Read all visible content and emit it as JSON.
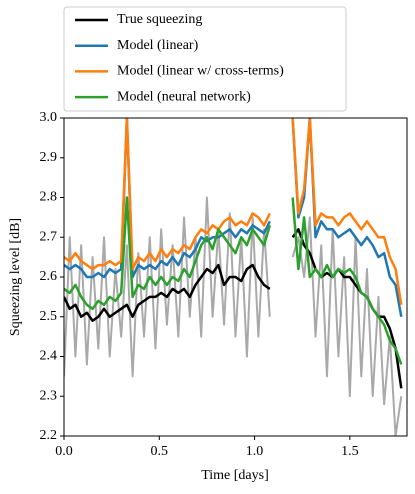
{
  "chart_data": {
    "type": "line",
    "xlabel": "Time [days]",
    "ylabel": "Squeezing level [dB]",
    "x": [
      0.0,
      0.03,
      0.06,
      0.09,
      0.12,
      0.15,
      0.18,
      0.21,
      0.24,
      0.27,
      0.3,
      0.33,
      0.36,
      0.39,
      0.42,
      0.45,
      0.48,
      0.51,
      0.54,
      0.57,
      0.6,
      0.63,
      0.66,
      0.69,
      0.72,
      0.75,
      0.78,
      0.81,
      0.84,
      0.87,
      0.9,
      0.93,
      0.96,
      0.99,
      1.02,
      1.05,
      1.08,
      1.11,
      1.14,
      1.17,
      1.2,
      1.23,
      1.26,
      1.29,
      1.32,
      1.35,
      1.38,
      1.41,
      1.44,
      1.47,
      1.5,
      1.53,
      1.56,
      1.59,
      1.62,
      1.65,
      1.68,
      1.71,
      1.74,
      1.77
    ],
    "series": [
      {
        "color": "#a9a9a9",
        "values": [
          2.35,
          2.7,
          2.4,
          2.68,
          2.38,
          2.65,
          2.42,
          2.7,
          2.4,
          2.62,
          2.45,
          2.68,
          2.35,
          2.66,
          2.45,
          2.7,
          2.42,
          2.72,
          2.48,
          2.68,
          2.45,
          2.75,
          2.5,
          2.7,
          2.45,
          2.8,
          2.5,
          2.72,
          2.48,
          2.76,
          2.45,
          2.7,
          2.4,
          2.75,
          2.45,
          2.72,
          2.5,
          null,
          null,
          null,
          2.65,
          2.7,
          2.6,
          2.75,
          2.45,
          2.68,
          2.35,
          2.72,
          2.4,
          2.65,
          2.3,
          2.7,
          2.35,
          2.62,
          2.3,
          2.55,
          2.28,
          2.45,
          2.2,
          2.3
        ]
      },
      {
        "name": "True squeezing",
        "color": "#000000",
        "values": [
          2.55,
          2.52,
          2.53,
          2.5,
          2.51,
          2.49,
          2.5,
          2.52,
          2.5,
          2.51,
          2.52,
          2.53,
          2.5,
          2.53,
          2.54,
          2.55,
          2.55,
          2.56,
          2.55,
          2.57,
          2.56,
          2.57,
          2.55,
          2.58,
          2.6,
          2.62,
          2.61,
          2.63,
          2.58,
          2.6,
          2.6,
          2.59,
          2.62,
          2.63,
          2.6,
          2.58,
          2.57,
          null,
          null,
          null,
          2.7,
          2.72,
          2.68,
          2.66,
          2.62,
          2.6,
          2.61,
          2.6,
          2.62,
          2.6,
          2.6,
          2.58,
          2.56,
          2.55,
          2.52,
          2.5,
          2.5,
          2.47,
          2.42,
          2.32
        ]
      },
      {
        "name": "Model (linear)",
        "color": "#1f77b4",
        "values": [
          2.63,
          2.62,
          2.63,
          2.62,
          2.6,
          2.6,
          2.61,
          2.6,
          2.62,
          2.61,
          2.62,
          3.0,
          2.6,
          2.63,
          2.62,
          2.63,
          2.62,
          2.64,
          2.63,
          2.65,
          2.63,
          2.66,
          2.65,
          2.67,
          2.7,
          2.69,
          2.7,
          2.7,
          2.71,
          2.72,
          2.7,
          2.72,
          2.71,
          2.73,
          2.72,
          2.71,
          2.74,
          null,
          null,
          null,
          3.0,
          2.75,
          2.8,
          3.0,
          2.7,
          2.74,
          2.72,
          2.72,
          2.7,
          2.71,
          2.72,
          2.7,
          2.68,
          2.7,
          2.68,
          2.65,
          2.66,
          2.6,
          2.58,
          2.5
        ]
      },
      {
        "name": "Model (linear w/ cross-terms)",
        "color": "#ff7f0e",
        "values": [
          2.65,
          2.64,
          2.66,
          2.64,
          2.63,
          2.62,
          2.63,
          2.63,
          2.64,
          2.63,
          2.64,
          3.0,
          2.62,
          2.65,
          2.64,
          2.66,
          2.64,
          2.67,
          2.65,
          2.67,
          2.66,
          2.68,
          2.67,
          2.7,
          2.72,
          2.71,
          2.73,
          2.72,
          2.74,
          2.75,
          2.73,
          2.74,
          2.73,
          2.76,
          2.75,
          2.73,
          2.76,
          null,
          null,
          null,
          3.0,
          2.76,
          2.82,
          3.0,
          2.73,
          2.76,
          2.75,
          2.75,
          2.73,
          2.75,
          2.76,
          2.74,
          2.72,
          2.74,
          2.72,
          2.7,
          2.7,
          2.65,
          2.62,
          2.53
        ]
      },
      {
        "name": "Model (neural network)",
        "color": "#2ca02c",
        "values": [
          2.57,
          2.56,
          2.58,
          2.55,
          2.53,
          2.52,
          2.54,
          2.53,
          2.55,
          2.54,
          2.56,
          2.8,
          2.55,
          2.58,
          2.57,
          2.6,
          2.58,
          2.6,
          2.58,
          2.6,
          2.59,
          2.62,
          2.6,
          2.64,
          2.68,
          2.7,
          2.67,
          2.72,
          2.7,
          2.68,
          2.66,
          2.7,
          2.68,
          2.72,
          2.7,
          2.68,
          2.73,
          null,
          null,
          null,
          2.8,
          2.62,
          2.75,
          2.6,
          2.62,
          2.6,
          2.63,
          2.6,
          2.62,
          2.61,
          2.62,
          2.6,
          2.56,
          2.55,
          2.52,
          2.5,
          2.48,
          2.44,
          2.42,
          2.38
        ]
      }
    ],
    "xlim": [
      0,
      1.8
    ],
    "xticks": [
      {
        "value": 0,
        "label": "0.0"
      },
      0.5,
      {
        "value": 1,
        "label": "1.0"
      },
      1.5
    ],
    "ylim": [
      2.2,
      3.0
    ],
    "yticks": [
      2.2,
      2.3,
      2.4,
      2.5,
      2.6,
      2.7,
      2.8,
      2.9,
      {
        "value": 3,
        "label": "3.0"
      }
    ],
    "grid": false,
    "legend": "above"
  }
}
